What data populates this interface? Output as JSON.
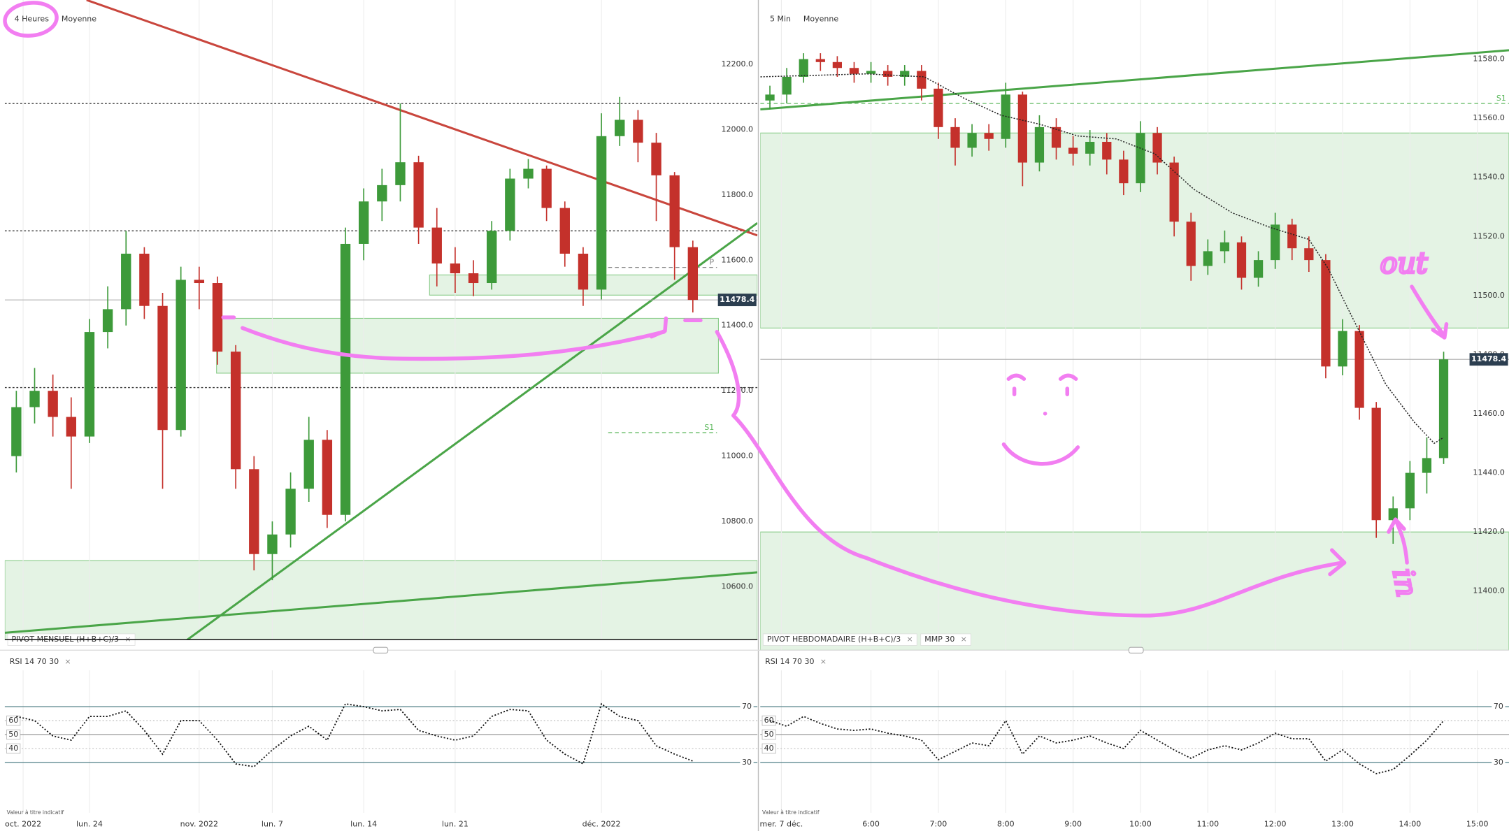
{
  "ui": {
    "close": "×"
  },
  "chart_data": [
    {
      "type": "candlestick",
      "title": "4 Heures",
      "subtitle": "Moyenne",
      "legend": [
        "PIVOT MENSUEL (H+B+C)/3"
      ],
      "up_color": "#3d9a3a",
      "down_color": "#c4312b",
      "zone_color": "#5cb85c",
      "grid": true,
      "xlim": [
        -4.63,
        36.53
      ],
      "ylim": [
        10438,
        12397
      ],
      "xticks": [
        {
          "value": -3.63,
          "label": "oct. 2022"
        },
        {
          "value": 0,
          "label": "lun. 24"
        },
        {
          "value": 6,
          "label": "nov. 2022"
        },
        {
          "value": 10,
          "label": "lun. 7"
        },
        {
          "value": 15,
          "label": "lun. 14"
        },
        {
          "value": 20,
          "label": "lun. 21"
        },
        {
          "value": 28,
          "label": "déc. 2022"
        }
      ],
      "yticks": [
        {
          "value": 10600,
          "label": "10600.0"
        },
        {
          "value": 10800,
          "label": "10800.0"
        },
        {
          "value": 11000,
          "label": "11000.0"
        },
        {
          "value": 11200,
          "label": "11200.0"
        },
        {
          "value": 11400,
          "label": "11400.0"
        },
        {
          "value": 11600,
          "label": "11600.0"
        },
        {
          "value": 11800,
          "label": "11800.0"
        },
        {
          "value": 12000,
          "label": "12000.0"
        },
        {
          "value": 12200,
          "label": "12200.0"
        }
      ],
      "x": [
        -4,
        -3,
        -2,
        -1,
        0,
        1,
        2,
        3,
        4,
        5,
        6,
        7,
        8,
        9,
        10,
        11,
        12,
        13,
        14,
        15,
        16,
        17,
        18,
        19,
        20,
        21,
        22,
        23,
        24,
        25,
        26,
        27,
        28,
        29,
        30,
        31,
        32,
        33
      ],
      "open": [
        11000,
        11150,
        11200,
        11120,
        11060,
        11380,
        11450,
        11620,
        11460,
        11080,
        11540,
        11530,
        11320,
        10960,
        10700,
        10760,
        10900,
        11050,
        10820,
        11650,
        11780,
        11830,
        11900,
        11700,
        11590,
        11560,
        11530,
        11690,
        11850,
        11880,
        11760,
        11620,
        11510,
        11980,
        12030,
        11960,
        11860,
        11640
      ],
      "high": [
        11200,
        11270,
        11250,
        11180,
        11420,
        11520,
        11690,
        11640,
        11500,
        11580,
        11580,
        11550,
        11340,
        11000,
        10800,
        10950,
        11120,
        11080,
        11700,
        11820,
        11880,
        12080,
        11920,
        11760,
        11640,
        11600,
        11720,
        11880,
        11910,
        11890,
        11780,
        11640,
        12050,
        12100,
        12060,
        11990,
        11870,
        11660
      ],
      "low": [
        10950,
        11100,
        11060,
        10900,
        11040,
        11330,
        11400,
        11420,
        10900,
        11060,
        11450,
        11280,
        10900,
        10650,
        10620,
        10720,
        10860,
        10780,
        10800,
        11600,
        11720,
        11780,
        11650,
        11520,
        11500,
        11490,
        11510,
        11660,
        11820,
        11720,
        11580,
        11460,
        11480,
        11950,
        11900,
        11720,
        11540,
        11440
      ],
      "close": [
        11150,
        11200,
        11120,
        11060,
        11380,
        11450,
        11620,
        11460,
        11080,
        11540,
        11530,
        11320,
        10960,
        10700,
        10760,
        10900,
        11050,
        10820,
        11650,
        11780,
        11830,
        11900,
        11700,
        11590,
        11560,
        11530,
        11690,
        11850,
        11880,
        11760,
        11620,
        11510,
        11980,
        12030,
        11960,
        11860,
        11640,
        11478.4
      ],
      "last_price": 11478.4,
      "levels": [
        12080,
        11690,
        11210
      ],
      "pivots": [
        {
          "name": "P",
          "value": 11578,
          "x": [
            28.37,
            34.32
          ],
          "color": "#888888"
        },
        {
          "name": "S1",
          "value": 11072,
          "x": [
            28.37,
            34.32
          ],
          "color": "#5cb85c"
        }
      ],
      "zones": [
        {
          "x": [
            18.6,
            36.53
          ],
          "y": [
            11493,
            11555
          ]
        },
        {
          "x": [
            6.95,
            34.4
          ],
          "y": [
            11254,
            11422
          ]
        },
        {
          "x": [
            -4.63,
            36.53
          ],
          "y": [
            10438,
            10680
          ]
        }
      ],
      "trendlines": [
        {
          "color": "#c9463d",
          "x": [
            -0.16,
            36.53
          ],
          "y": [
            12397,
            11676
          ]
        },
        {
          "color": "#4aa548",
          "x": [
            4.58,
            36.53
          ],
          "y": [
            10406,
            11714
          ]
        },
        {
          "color": "#4aa548",
          "x": [
            -4.63,
            36.53
          ],
          "y": [
            10459,
            10644
          ]
        }
      ],
      "rsi": {
        "title": "RSI 14 70 30",
        "footnote": "Valeur à titre indicatif",
        "ylim": [
          -6,
          96
        ],
        "yticks": [
          70,
          60,
          50,
          40,
          30
        ],
        "values": [
          63,
          60,
          49,
          46,
          63,
          63,
          67,
          53,
          36,
          60,
          60,
          46,
          29,
          27,
          39,
          49,
          56,
          46,
          72,
          70,
          67,
          68,
          53,
          49,
          46,
          49,
          63,
          68,
          67,
          46,
          36,
          29,
          72,
          63,
          60,
          42,
          36,
          31
        ]
      }
    },
    {
      "type": "candlestick",
      "title": "5 Min",
      "subtitle": "Moyenne",
      "legend": [
        "PIVOT HEBDOMADAIRE (H+B+C)/3"
      ],
      "up_color": "#3d9a3a",
      "down_color": "#c4312b",
      "zone_color": "#5cb85c",
      "grid": true,
      "xlim": [
        4.357,
        15.47
      ],
      "ylim": [
        11380,
        11600
      ],
      "xticks": [
        {
          "value": 4.67,
          "label": "mer. 7 déc."
        },
        {
          "value": 6,
          "label": "6:00"
        },
        {
          "value": 7,
          "label": "7:00"
        },
        {
          "value": 8,
          "label": "8:00"
        },
        {
          "value": 9,
          "label": "9:00"
        },
        {
          "value": 10,
          "label": "10:00"
        },
        {
          "value": 11,
          "label": "11:00"
        },
        {
          "value": 12,
          "label": "12:00"
        },
        {
          "value": 13,
          "label": "13:00"
        },
        {
          "value": 14,
          "label": "14:00"
        },
        {
          "value": 15,
          "label": "15:00"
        }
      ],
      "yticks": [
        {
          "value": 11400,
          "label": "11400.0"
        },
        {
          "value": 11420,
          "label": "11420.0"
        },
        {
          "value": 11440,
          "label": "11440.0"
        },
        {
          "value": 11460,
          "label": "11460.0"
        },
        {
          "value": 11480,
          "label": "11480.0"
        },
        {
          "value": 11500,
          "label": "11500.0"
        },
        {
          "value": 11520,
          "label": "11520.0"
        },
        {
          "value": 11540,
          "label": "11540.0"
        },
        {
          "value": 11560,
          "label": "11560.0"
        },
        {
          "value": 11580,
          "label": "11580.0"
        }
      ],
      "x": [
        4.5,
        4.75,
        5,
        5.25,
        5.5,
        5.75,
        6,
        6.25,
        6.5,
        6.75,
        7,
        7.25,
        7.5,
        7.75,
        8,
        8.25,
        8.5,
        8.75,
        9,
        9.25,
        9.5,
        9.75,
        10,
        10.25,
        10.5,
        10.75,
        11,
        11.25,
        11.5,
        11.75,
        12,
        12.25,
        12.5,
        12.75,
        13,
        13.25,
        13.5,
        13.75,
        14,
        14.25,
        14.5
      ],
      "open": [
        11566,
        11568,
        11574,
        11580,
        11579,
        11577,
        11575,
        11576,
        11574,
        11576,
        11570,
        11557,
        11550,
        11555,
        11553,
        11568,
        11545,
        11557,
        11550,
        11548,
        11552,
        11546,
        11538,
        11555,
        11545,
        11525,
        11510,
        11515,
        11518,
        11506,
        11512,
        11524,
        11516,
        11512,
        11476,
        11488,
        11462,
        11424,
        11428,
        11440,
        11445
      ],
      "high": [
        11571,
        11577,
        11582,
        11582,
        11581,
        11579,
        11579,
        11578,
        11578,
        11578,
        11572,
        11560,
        11558,
        11558,
        11572,
        11569,
        11561,
        11560,
        11554,
        11556,
        11555,
        11549,
        11559,
        11557,
        11547,
        11528,
        11519,
        11522,
        11520,
        11515,
        11528,
        11526,
        11520,
        11514,
        11492,
        11490,
        11464,
        11432,
        11444,
        11452,
        11481
      ],
      "low": [
        11563,
        11565,
        11572,
        11576,
        11574,
        11572,
        11572,
        11571,
        11571,
        11566,
        11553,
        11544,
        11547,
        11549,
        11550,
        11537,
        11542,
        11546,
        11544,
        11544,
        11541,
        11534,
        11535,
        11541,
        11520,
        11505,
        11507,
        11511,
        11502,
        11503,
        11509,
        11512,
        11508,
        11472,
        11473,
        11458,
        11418,
        11416,
        11424,
        11433,
        11443
      ],
      "close": [
        11568,
        11574,
        11580,
        11579,
        11577,
        11575,
        11576,
        11574,
        11576,
        11570,
        11557,
        11550,
        11555,
        11553,
        11568,
        11545,
        11557,
        11550,
        11548,
        11552,
        11546,
        11538,
        11555,
        11545,
        11525,
        11510,
        11515,
        11518,
        11506,
        11512,
        11524,
        11516,
        11512,
        11476,
        11488,
        11462,
        11424,
        11428,
        11440,
        11445,
        11478.4
      ],
      "last_price": 11478.4,
      "pivots": [
        {
          "name": "S1",
          "value": 11565,
          "x": [
            4.357,
            15.47
          ],
          "color": "#5cb85c"
        }
      ],
      "zones": [
        {
          "x": [
            4.357,
            15.47
          ],
          "y": [
            11489,
            11555
          ]
        },
        {
          "x": [
            4.357,
            15.47
          ],
          "y": [
            11380,
            11420
          ]
        }
      ],
      "trendlines": [
        {
          "color": "#4aa548",
          "x": [
            4.357,
            15.47
          ],
          "y": [
            11563,
            11583
          ]
        }
      ],
      "series": [
        {
          "name": "MMP 30",
          "color": "#222222",
          "x": [
            4.36,
            5.93,
            6.79,
            7.36,
            7.93,
            8.5,
            9.07,
            9.64,
            10.21,
            10.79,
            11.36,
            11.93,
            12.5,
            12.79,
            13.07,
            13.64,
            14.07,
            14.36,
            14.5
          ],
          "values": [
            11574,
            11575,
            11574,
            11567,
            11561,
            11558,
            11554,
            11553,
            11548,
            11536,
            11528,
            11523,
            11519,
            11509,
            11496,
            11470,
            11457,
            11450,
            11452
          ]
        }
      ],
      "annotations": [
        "out",
        "in"
      ],
      "rsi": {
        "title": "RSI 14 70 30",
        "footnote": "Valeur à titre indicatif",
        "ylim": [
          -6,
          96
        ],
        "yticks": [
          70,
          60,
          50,
          40,
          30
        ],
        "values": [
          60,
          56,
          63,
          58,
          54,
          53,
          54,
          51,
          49,
          46,
          32,
          38,
          44,
          42,
          60,
          36,
          49,
          44,
          46,
          49,
          44,
          40,
          53,
          46,
          39,
          33,
          39,
          42,
          39,
          44,
          51,
          47,
          47,
          31,
          39,
          29,
          22,
          25,
          35,
          46,
          60
        ]
      }
    }
  ]
}
